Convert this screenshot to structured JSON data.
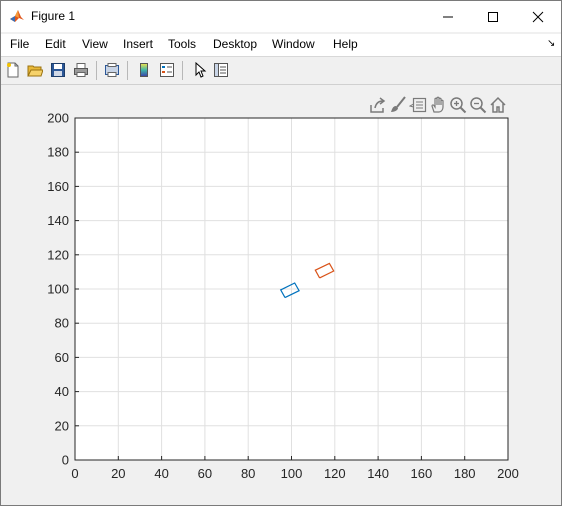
{
  "window": {
    "title": "Figure 1",
    "icon": "matlab-icon",
    "controls": [
      "minimize-icon",
      "maximize-icon",
      "close-icon"
    ]
  },
  "menu": {
    "items": [
      "File",
      "Edit",
      "View",
      "Insert",
      "Tools",
      "Desktop",
      "Window",
      "Help"
    ]
  },
  "toolbar": {
    "icons": [
      "new-figure-icon",
      "open-file-icon",
      "save-icon",
      "print-icon",
      "print-preview-icon",
      "colorbar-icon",
      "legend-icon",
      "edit-plot-icon",
      "property-inspector-icon"
    ]
  },
  "axes_toolbar": {
    "icons": [
      "export-icon",
      "brush-icon",
      "datatip-icon",
      "pan-icon",
      "zoom-in-icon",
      "zoom-out-icon",
      "home-icon"
    ]
  },
  "colors": {
    "series1": "#0072bd",
    "series2": "#d95319",
    "grid": "#e0e0e0",
    "axes_bg": "#ffffff"
  },
  "chart_data": {
    "type": "line",
    "title": "",
    "xlabel": "",
    "ylabel": "",
    "xlim": [
      0,
      200
    ],
    "ylim": [
      0,
      200
    ],
    "xticks": [
      0,
      20,
      40,
      60,
      80,
      100,
      120,
      140,
      160,
      180,
      200
    ],
    "yticks": [
      0,
      20,
      40,
      60,
      80,
      100,
      120,
      140,
      160,
      180,
      200
    ],
    "grid": true,
    "series": [
      {
        "x": [
          97,
          103.5,
          101.5,
          95,
          97
        ],
        "y": [
          95,
          99,
          103.5,
          99.5,
          95
        ]
      },
      {
        "x": [
          113,
          119.5,
          117.5,
          111,
          113
        ],
        "y": [
          106.5,
          110.5,
          115,
          111,
          106.5
        ]
      }
    ]
  }
}
